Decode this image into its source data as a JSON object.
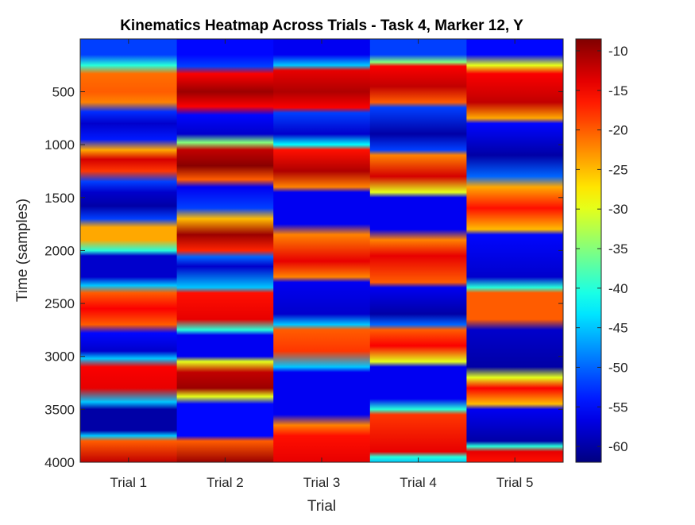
{
  "chart_data": {
    "type": "heatmap",
    "title": "Kinematics Heatmap Across Trials - Task 4, Marker 12, Y",
    "xlabel": "Trial",
    "ylabel": "Time (samples)",
    "categories": [
      "Trial 1",
      "Trial 2",
      "Trial 3",
      "Trial 4",
      "Trial 5"
    ],
    "y_range": [
      1,
      4000
    ],
    "y_ticks": [
      500,
      1000,
      1500,
      2000,
      2500,
      3000,
      3500,
      4000
    ],
    "y_reversed": true,
    "colormap": "jet",
    "clim": [
      -62,
      -8.5
    ],
    "colorbar_ticks": [
      -10,
      -15,
      -20,
      -25,
      -30,
      -35,
      -40,
      -45,
      -50,
      -55,
      -60
    ],
    "series": [
      {
        "column": "Trial 1",
        "profile": [
          [
            1,
            -52
          ],
          [
            150,
            -52
          ],
          [
            250,
            -40
          ],
          [
            330,
            -21
          ],
          [
            500,
            -20
          ],
          [
            600,
            -22
          ],
          [
            690,
            -53
          ],
          [
            800,
            -58
          ],
          [
            950,
            -54
          ],
          [
            1050,
            -24
          ],
          [
            1140,
            -13
          ],
          [
            1250,
            -18
          ],
          [
            1350,
            -52
          ],
          [
            1450,
            -58
          ],
          [
            1580,
            -60
          ],
          [
            1700,
            -52
          ],
          [
            1780,
            -24
          ],
          [
            1900,
            -24
          ],
          [
            2000,
            -40
          ],
          [
            2050,
            -58
          ],
          [
            2250,
            -58
          ],
          [
            2330,
            -45
          ],
          [
            2400,
            -20
          ],
          [
            2550,
            -15
          ],
          [
            2700,
            -20
          ],
          [
            2780,
            -55
          ],
          [
            2950,
            -58
          ],
          [
            3020,
            -45
          ],
          [
            3100,
            -15
          ],
          [
            3300,
            -14
          ],
          [
            3430,
            -45
          ],
          [
            3500,
            -60
          ],
          [
            3700,
            -60
          ],
          [
            3750,
            -45
          ],
          [
            3800,
            -20
          ],
          [
            4000,
            -12
          ]
        ]
      },
      {
        "column": "Trial 2",
        "profile": [
          [
            1,
            -55
          ],
          [
            150,
            -55
          ],
          [
            260,
            -52
          ],
          [
            330,
            -15
          ],
          [
            500,
            -10
          ],
          [
            640,
            -15
          ],
          [
            720,
            -55
          ],
          [
            900,
            -58
          ],
          [
            980,
            -35
          ],
          [
            1050,
            -12
          ],
          [
            1200,
            -9
          ],
          [
            1330,
            -20
          ],
          [
            1400,
            -56
          ],
          [
            1600,
            -52
          ],
          [
            1700,
            -25
          ],
          [
            1850,
            -10
          ],
          [
            2000,
            -17
          ],
          [
            2060,
            -50
          ],
          [
            2150,
            -58
          ],
          [
            2350,
            -45
          ],
          [
            2400,
            -16
          ],
          [
            2650,
            -14
          ],
          [
            2750,
            -40
          ],
          [
            2800,
            -56
          ],
          [
            3000,
            -56
          ],
          [
            3050,
            -30
          ],
          [
            3150,
            -12
          ],
          [
            3300,
            -10
          ],
          [
            3380,
            -30
          ],
          [
            3450,
            -55
          ],
          [
            3750,
            -55
          ],
          [
            3800,
            -20
          ],
          [
            4000,
            -10
          ]
        ]
      },
      {
        "column": "Trial 3",
        "profile": [
          [
            1,
            -56
          ],
          [
            150,
            -56
          ],
          [
            250,
            -45
          ],
          [
            300,
            -14
          ],
          [
            500,
            -11
          ],
          [
            650,
            -15
          ],
          [
            700,
            -52
          ],
          [
            900,
            -58
          ],
          [
            1000,
            -42
          ],
          [
            1050,
            -16
          ],
          [
            1250,
            -11
          ],
          [
            1400,
            -22
          ],
          [
            1450,
            -56
          ],
          [
            1750,
            -56
          ],
          [
            1850,
            -22
          ],
          [
            2100,
            -14
          ],
          [
            2250,
            -22
          ],
          [
            2300,
            -56
          ],
          [
            2600,
            -58
          ],
          [
            2700,
            -45
          ],
          [
            2750,
            -20
          ],
          [
            2950,
            -18
          ],
          [
            3100,
            -45
          ],
          [
            3150,
            -56
          ],
          [
            3550,
            -56
          ],
          [
            3650,
            -22
          ],
          [
            3750,
            -16
          ],
          [
            4000,
            -14
          ]
        ]
      },
      {
        "column": "Trial 4",
        "profile": [
          [
            1,
            -52
          ],
          [
            150,
            -52
          ],
          [
            220,
            -35
          ],
          [
            260,
            -15
          ],
          [
            450,
            -12
          ],
          [
            600,
            -20
          ],
          [
            650,
            -52
          ],
          [
            900,
            -60
          ],
          [
            1050,
            -52
          ],
          [
            1100,
            -22
          ],
          [
            1300,
            -13
          ],
          [
            1450,
            -30
          ],
          [
            1500,
            -56
          ],
          [
            1800,
            -56
          ],
          [
            1900,
            -22
          ],
          [
            2050,
            -14
          ],
          [
            2300,
            -20
          ],
          [
            2350,
            -56
          ],
          [
            2600,
            -60
          ],
          [
            2700,
            -50
          ],
          [
            2750,
            -20
          ],
          [
            2900,
            -15
          ],
          [
            3050,
            -30
          ],
          [
            3100,
            -56
          ],
          [
            3400,
            -56
          ],
          [
            3500,
            -40
          ],
          [
            3550,
            -18
          ],
          [
            3900,
            -14
          ],
          [
            3950,
            -40
          ],
          [
            4000,
            -45
          ]
        ]
      },
      {
        "column": "Trial 5",
        "profile": [
          [
            1,
            -55
          ],
          [
            150,
            -55
          ],
          [
            250,
            -30
          ],
          [
            330,
            -15
          ],
          [
            600,
            -12
          ],
          [
            750,
            -24
          ],
          [
            800,
            -55
          ],
          [
            1100,
            -60
          ],
          [
            1300,
            -50
          ],
          [
            1400,
            -24
          ],
          [
            1600,
            -16
          ],
          [
            1800,
            -25
          ],
          [
            1850,
            -55
          ],
          [
            2250,
            -58
          ],
          [
            2350,
            -40
          ],
          [
            2400,
            -20
          ],
          [
            2650,
            -20
          ],
          [
            2750,
            -58
          ],
          [
            3100,
            -60
          ],
          [
            3200,
            -30
          ],
          [
            3300,
            -15
          ],
          [
            3450,
            -25
          ],
          [
            3500,
            -56
          ],
          [
            3800,
            -60
          ],
          [
            3850,
            -40
          ],
          [
            3900,
            -14
          ],
          [
            4000,
            -16
          ]
        ]
      }
    ]
  }
}
